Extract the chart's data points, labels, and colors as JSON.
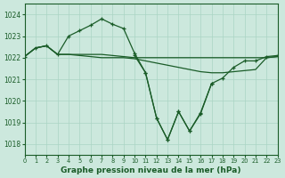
{
  "title": "Graphe pression niveau de la mer (hPa)",
  "bg_color": "#cce8dd",
  "grid_color": "#aad4c4",
  "line_color": "#1a5c28",
  "xlim": [
    0,
    23
  ],
  "ylim": [
    1017.5,
    1024.5
  ],
  "yticks": [
    1018,
    1019,
    1020,
    1021,
    1022,
    1023,
    1024
  ],
  "xticks": [
    0,
    1,
    2,
    3,
    4,
    5,
    6,
    7,
    8,
    9,
    10,
    11,
    12,
    13,
    14,
    15,
    16,
    17,
    18,
    19,
    20,
    21,
    22,
    23
  ],
  "line_main": {
    "x": [
      0,
      1,
      2,
      3,
      4,
      5,
      6,
      7,
      8,
      9,
      10,
      11,
      12,
      13,
      14,
      15,
      16,
      17,
      18,
      19,
      20,
      21,
      22,
      23
    ],
    "y": [
      1022.05,
      1022.45,
      1022.55,
      1022.15,
      1023.0,
      1023.25,
      1023.5,
      1023.8,
      1023.55,
      1023.35,
      1022.2,
      1021.3,
      1019.2,
      1018.2,
      1019.5,
      1018.6,
      1019.4,
      1020.8,
      null,
      null,
      null,
      null,
      null,
      null
    ],
    "markers": true
  },
  "line_a": {
    "x": [
      0,
      1,
      2,
      3,
      4,
      5,
      6,
      7,
      8,
      9,
      10,
      11,
      12,
      13,
      14,
      15,
      16,
      17,
      18,
      19,
      20,
      21,
      22,
      23
    ],
    "y": [
      1022.05,
      1022.45,
      1022.55,
      1022.15,
      1022.15,
      1022.15,
      1022.15,
      1022.15,
      1022.1,
      1022.05,
      1022.0,
      1022.0,
      1022.0,
      1022.0,
      1022.0,
      1022.0,
      1022.0,
      1022.0,
      1022.0,
      1022.0,
      1022.0,
      1022.0,
      1022.0,
      1022.05
    ],
    "markers": false
  },
  "line_b": {
    "x": [
      0,
      1,
      2,
      3,
      4,
      5,
      6,
      7,
      8,
      9,
      10,
      11,
      12,
      13,
      14,
      15,
      16,
      17,
      18,
      19,
      20,
      21,
      22,
      23
    ],
    "y": [
      1022.05,
      1022.45,
      1022.55,
      1022.15,
      1022.15,
      1022.1,
      1022.05,
      1022.0,
      1022.0,
      1022.0,
      1021.95,
      1021.85,
      1021.75,
      1021.65,
      1021.55,
      1021.45,
      1021.35,
      1021.3,
      1021.3,
      1021.35,
      1021.4,
      1021.45,
      1022.0,
      1022.05
    ],
    "markers": false
  },
  "line_c": {
    "x": [
      10,
      11,
      12,
      13,
      14,
      15,
      16,
      17,
      18,
      19,
      20,
      21,
      22,
      23
    ],
    "y": [
      1022.1,
      1021.3,
      1019.2,
      1018.2,
      1019.5,
      1018.6,
      1019.45,
      1020.8,
      1021.05,
      1021.55,
      1021.85,
      1021.85,
      1022.05,
      1022.1
    ],
    "markers": true
  }
}
